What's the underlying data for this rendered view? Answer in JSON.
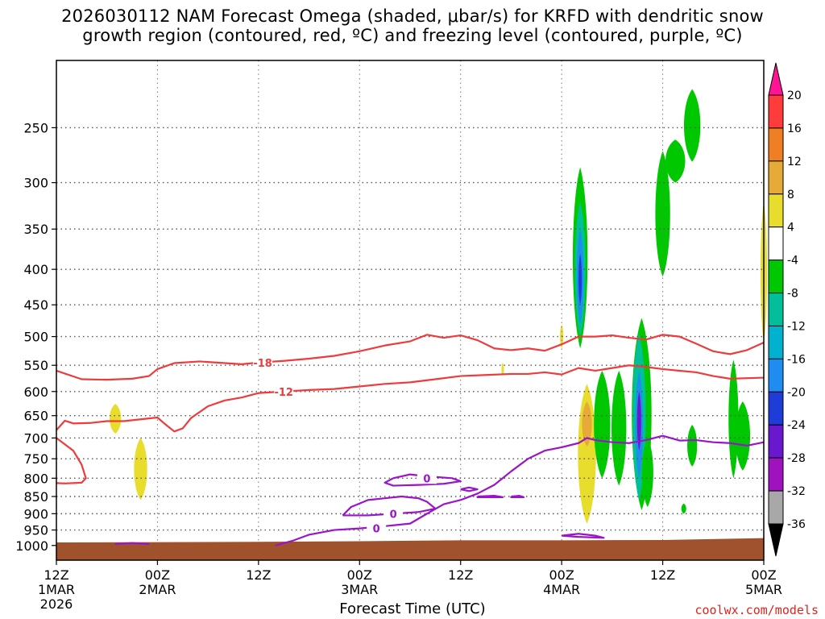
{
  "title_line1": "2026030112 NAM Forecast Omega (shaded, μbar/s) for KRFD with dendritic snow",
  "title_line2": "growth region (contoured, red, ºC) and freezing level (contoured, purple, ºC)",
  "xlabel": "Forecast Time (UTC)",
  "credit": "coolwx.com/models",
  "colors": {
    "red_contour": "#ee3b3b",
    "purple_contour": "#9a14c8",
    "terrain": "#a0522d",
    "grid": "#888888"
  },
  "chart_data": {
    "type": "heatmap",
    "x_ticks": [
      {
        "hour": 0,
        "label": "12Z",
        "sub": [
          "1MAR",
          "2026"
        ]
      },
      {
        "hour": 12,
        "label": "00Z",
        "sub": [
          "2MAR"
        ]
      },
      {
        "hour": 24,
        "label": "12Z",
        "sub": []
      },
      {
        "hour": 36,
        "label": "00Z",
        "sub": [
          "3MAR"
        ]
      },
      {
        "hour": 48,
        "label": "12Z",
        "sub": []
      },
      {
        "hour": 60,
        "label": "00Z",
        "sub": [
          "4MAR"
        ]
      },
      {
        "hour": 72,
        "label": "12Z",
        "sub": []
      },
      {
        "hour": 84,
        "label": "00Z",
        "sub": [
          "5MAR"
        ]
      }
    ],
    "x_range_hours": [
      0,
      84
    ],
    "y_ticks_hpa": [
      250,
      300,
      350,
      400,
      450,
      500,
      550,
      600,
      650,
      700,
      750,
      800,
      850,
      900,
      950,
      1000
    ],
    "y_range_hpa": [
      200,
      1050
    ],
    "y_scale": "log-pressure",
    "grid": true,
    "colorbar": {
      "levels": [
        20,
        16,
        12,
        8,
        4,
        -4,
        -8,
        -12,
        -16,
        -20,
        -24,
        -28,
        -32,
        -36
      ],
      "colors": [
        "#ff1493",
        "#ff3b3b",
        "#f07f23",
        "#e6aa38",
        "#e8dc2c",
        "#ffffff",
        "#00c800",
        "#00bf9a",
        "#00b2d0",
        "#1e8cf0",
        "#1e3cd8",
        "#6a18d0",
        "#a012c0",
        "#a8a8a8",
        "#000000"
      ]
    },
    "contours": [
      {
        "kind": "temperature",
        "value": -18,
        "label": "-18",
        "color": "#ee3b3b",
        "points": [
          [
            0,
            560
          ],
          [
            3,
            576
          ],
          [
            6,
            577
          ],
          [
            9,
            575
          ],
          [
            11,
            570
          ],
          [
            12,
            557
          ],
          [
            14,
            546
          ],
          [
            17,
            543
          ],
          [
            20,
            546
          ],
          [
            22,
            548
          ],
          [
            24,
            545
          ],
          [
            27,
            542
          ],
          [
            30,
            538
          ],
          [
            33,
            533
          ],
          [
            36,
            525
          ],
          [
            39,
            515
          ],
          [
            42,
            508
          ],
          [
            44,
            497
          ],
          [
            46,
            502
          ],
          [
            48,
            498
          ],
          [
            50,
            506
          ],
          [
            52,
            520
          ],
          [
            54,
            523
          ],
          [
            56,
            520
          ],
          [
            58,
            524
          ],
          [
            60,
            513
          ],
          [
            62,
            500
          ],
          [
            64,
            500
          ],
          [
            66,
            498
          ],
          [
            68,
            502
          ],
          [
            70,
            505
          ],
          [
            72,
            497
          ],
          [
            74,
            500
          ],
          [
            76,
            512
          ],
          [
            78,
            525
          ],
          [
            80,
            530
          ],
          [
            82,
            523
          ],
          [
            84,
            510
          ]
        ],
        "label_at": [
          24.5,
          545
        ]
      },
      {
        "kind": "temperature",
        "value": -12,
        "label": "-12",
        "color": "#ee3b3b",
        "points": [
          [
            0,
            682
          ],
          [
            1,
            661
          ],
          [
            2,
            667
          ],
          [
            4,
            666
          ],
          [
            6,
            662
          ],
          [
            8,
            662
          ],
          [
            10,
            658
          ],
          [
            12,
            654
          ],
          [
            13,
            670
          ],
          [
            14,
            685
          ],
          [
            15,
            678
          ],
          [
            16,
            655
          ],
          [
            18,
            630
          ],
          [
            20,
            618
          ],
          [
            22,
            612
          ],
          [
            24,
            603
          ],
          [
            27,
            600
          ],
          [
            30,
            597
          ],
          [
            33,
            595
          ],
          [
            36,
            590
          ],
          [
            39,
            585
          ],
          [
            42,
            582
          ],
          [
            45,
            576
          ],
          [
            48,
            570
          ],
          [
            51,
            568
          ],
          [
            54,
            566
          ],
          [
            56,
            566
          ],
          [
            58,
            563
          ],
          [
            60,
            567
          ],
          [
            62,
            555
          ],
          [
            64,
            560
          ],
          [
            66,
            555
          ],
          [
            68,
            550
          ],
          [
            70,
            553
          ],
          [
            72,
            557
          ],
          [
            74,
            560
          ],
          [
            76,
            563
          ],
          [
            78,
            570
          ],
          [
            80,
            575
          ],
          [
            84,
            573
          ]
        ],
        "label_at": [
          27,
          600
        ]
      },
      {
        "kind": "temperature",
        "value": -12,
        "label": "",
        "color": "#ee3b3b",
        "points": [
          [
            0,
            700
          ],
          [
            2,
            730
          ],
          [
            3,
            765
          ],
          [
            3.5,
            800
          ],
          [
            3,
            812
          ],
          [
            1,
            814
          ],
          [
            0,
            813
          ]
        ]
      },
      {
        "kind": "freezing",
        "value": 0,
        "label": "0",
        "color": "#9a14c8",
        "points": [
          [
            26,
            1000
          ],
          [
            28,
            985
          ],
          [
            30,
            965
          ],
          [
            33,
            950
          ],
          [
            36,
            945
          ],
          [
            39,
            938
          ],
          [
            42,
            930
          ],
          [
            44,
            900
          ],
          [
            46,
            872
          ],
          [
            48,
            860
          ],
          [
            50,
            842
          ],
          [
            52,
            818
          ],
          [
            54,
            782
          ],
          [
            56,
            750
          ],
          [
            58,
            730
          ],
          [
            60,
            722
          ],
          [
            62,
            712
          ],
          [
            63,
            700
          ],
          [
            64,
            705
          ],
          [
            66,
            710
          ],
          [
            68,
            712
          ],
          [
            70,
            705
          ],
          [
            72,
            695
          ],
          [
            74,
            706
          ],
          [
            76,
            705
          ],
          [
            78,
            710
          ],
          [
            80,
            712
          ],
          [
            82,
            718
          ],
          [
            84,
            710
          ]
        ],
        "label_at": [
          38,
          945
        ]
      },
      {
        "kind": "freezing",
        "value": 0,
        "label": "0",
        "color": "#9a14c8",
        "points": [
          [
            34,
            905
          ],
          [
            35,
            880
          ],
          [
            37,
            860
          ],
          [
            39,
            855
          ],
          [
            41,
            850
          ],
          [
            43,
            855
          ],
          [
            44,
            865
          ],
          [
            45,
            885
          ],
          [
            43,
            895
          ],
          [
            40,
            900
          ],
          [
            37,
            905
          ],
          [
            34,
            905
          ]
        ],
        "label_at": [
          40,
          900
        ]
      },
      {
        "kind": "freezing",
        "value": 0,
        "label": "0",
        "color": "#9a14c8",
        "points": [
          [
            40,
            800
          ],
          [
            42,
            790
          ],
          [
            44,
            795
          ],
          [
            47,
            800
          ],
          [
            48,
            808
          ],
          [
            46,
            815
          ],
          [
            43,
            818
          ],
          [
            40,
            820
          ],
          [
            39,
            812
          ],
          [
            40,
            800
          ]
        ],
        "label_at": [
          44,
          800
        ]
      },
      {
        "kind": "freezing",
        "value": 0,
        "label": "",
        "color": "#9a14c8",
        "points": [
          [
            48,
            830
          ],
          [
            49,
            825
          ],
          [
            50,
            830
          ],
          [
            49,
            835
          ],
          [
            48,
            830
          ]
        ]
      },
      {
        "kind": "freezing",
        "value": 0,
        "label": "",
        "color": "#9a14c8",
        "points": [
          [
            50,
            850
          ],
          [
            52,
            848
          ],
          [
            53,
            852
          ],
          [
            50,
            852
          ],
          [
            50,
            850
          ]
        ]
      },
      {
        "kind": "freezing",
        "value": 0,
        "label": "",
        "color": "#9a14c8",
        "points": [
          [
            54,
            850
          ],
          [
            55,
            848
          ],
          [
            55.5,
            852
          ],
          [
            54,
            852
          ],
          [
            54,
            850
          ]
        ]
      },
      {
        "kind": "freezing",
        "value": 0,
        "label": "",
        "color": "#9a14c8",
        "points": [
          [
            60,
            968
          ],
          [
            62,
            962
          ],
          [
            64,
            968
          ],
          [
            65,
            975
          ],
          [
            62,
            972
          ],
          [
            60,
            968
          ]
        ]
      },
      {
        "kind": "freezing",
        "value": 0,
        "label": "",
        "color": "#9a14c8",
        "points": [
          [
            7,
            995
          ],
          [
            9,
            992
          ],
          [
            11,
            995
          ]
        ]
      }
    ],
    "omega_blobs": [
      {
        "hour": 7,
        "p": [
          625,
          690
        ],
        "w": 0.7,
        "color": "#e8dc2c"
      },
      {
        "hour": 10,
        "p": [
          700,
          860
        ],
        "w": 0.8,
        "color": "#e8dc2c"
      },
      {
        "hour": 60,
        "p": [
          480,
          520
        ],
        "w": 0.2,
        "color": "#e8dc2c"
      },
      {
        "hour": 53,
        "p": [
          545,
          570
        ],
        "w": 0.15,
        "color": "#e8dc2c"
      },
      {
        "hour": 63,
        "p": [
          585,
          930
        ],
        "w": 1.1,
        "color": "#e8dc2c"
      },
      {
        "hour": 63,
        "p": [
          620,
          720
        ],
        "w": 0.6,
        "color": "#e6aa38"
      },
      {
        "hour": 62.2,
        "p": [
          285,
          520
        ],
        "w": 0.9,
        "color": "#00c800"
      },
      {
        "hour": 62.2,
        "p": [
          320,
          500
        ],
        "w": 0.65,
        "color": "#00bf9a"
      },
      {
        "hour": 62.2,
        "p": [
          350,
          480
        ],
        "w": 0.4,
        "color": "#1e8cf0"
      },
      {
        "hour": 62.2,
        "p": [
          380,
          450
        ],
        "w": 0.2,
        "color": "#1e3cd8"
      },
      {
        "hour": 64.8,
        "p": [
          560,
          800
        ],
        "w": 1.0,
        "color": "#00c800"
      },
      {
        "hour": 66.8,
        "p": [
          560,
          820
        ],
        "w": 0.9,
        "color": "#00c800"
      },
      {
        "hour": 69.5,
        "p": [
          470,
          890
        ],
        "w": 1.2,
        "color": "#00c800"
      },
      {
        "hour": 69.2,
        "p": [
          495,
          860
        ],
        "w": 0.8,
        "color": "#00bf9a"
      },
      {
        "hour": 69.2,
        "p": [
          560,
          800
        ],
        "w": 0.45,
        "color": "#1e8cf0"
      },
      {
        "hour": 69.2,
        "p": [
          600,
          730
        ],
        "w": 0.25,
        "color": "#6a18d0"
      },
      {
        "hour": 70.2,
        "p": [
          700,
          880
        ],
        "w": 0.7,
        "color": "#00c800"
      },
      {
        "hour": 72,
        "p": [
          270,
          410
        ],
        "w": 0.9,
        "color": "#00c800"
      },
      {
        "hour": 73.5,
        "p": [
          260,
          300
        ],
        "w": 1.2,
        "color": "#00c800"
      },
      {
        "hour": 75.5,
        "p": [
          220,
          280
        ],
        "w": 1.0,
        "color": "#00c800"
      },
      {
        "hour": 75.5,
        "p": [
          670,
          770
        ],
        "w": 0.6,
        "color": "#00c800"
      },
      {
        "hour": 74.5,
        "p": [
          870,
          900
        ],
        "w": 0.3,
        "color": "#00c800"
      },
      {
        "hour": 80.4,
        "p": [
          540,
          800
        ],
        "w": 0.6,
        "color": "#00c800"
      },
      {
        "hour": 81.5,
        "p": [
          620,
          780
        ],
        "w": 0.9,
        "color": "#00c800"
      },
      {
        "hour": 84,
        "p": [
          320,
          510
        ],
        "w": 0.4,
        "color": "#e8dc2c"
      }
    ],
    "terrain_surface_hpa": [
      [
        0,
        990
      ],
      [
        24,
        988
      ],
      [
        36,
        986
      ],
      [
        48,
        983
      ],
      [
        60,
        983
      ],
      [
        72,
        982
      ],
      [
        84,
        976
      ]
    ]
  }
}
